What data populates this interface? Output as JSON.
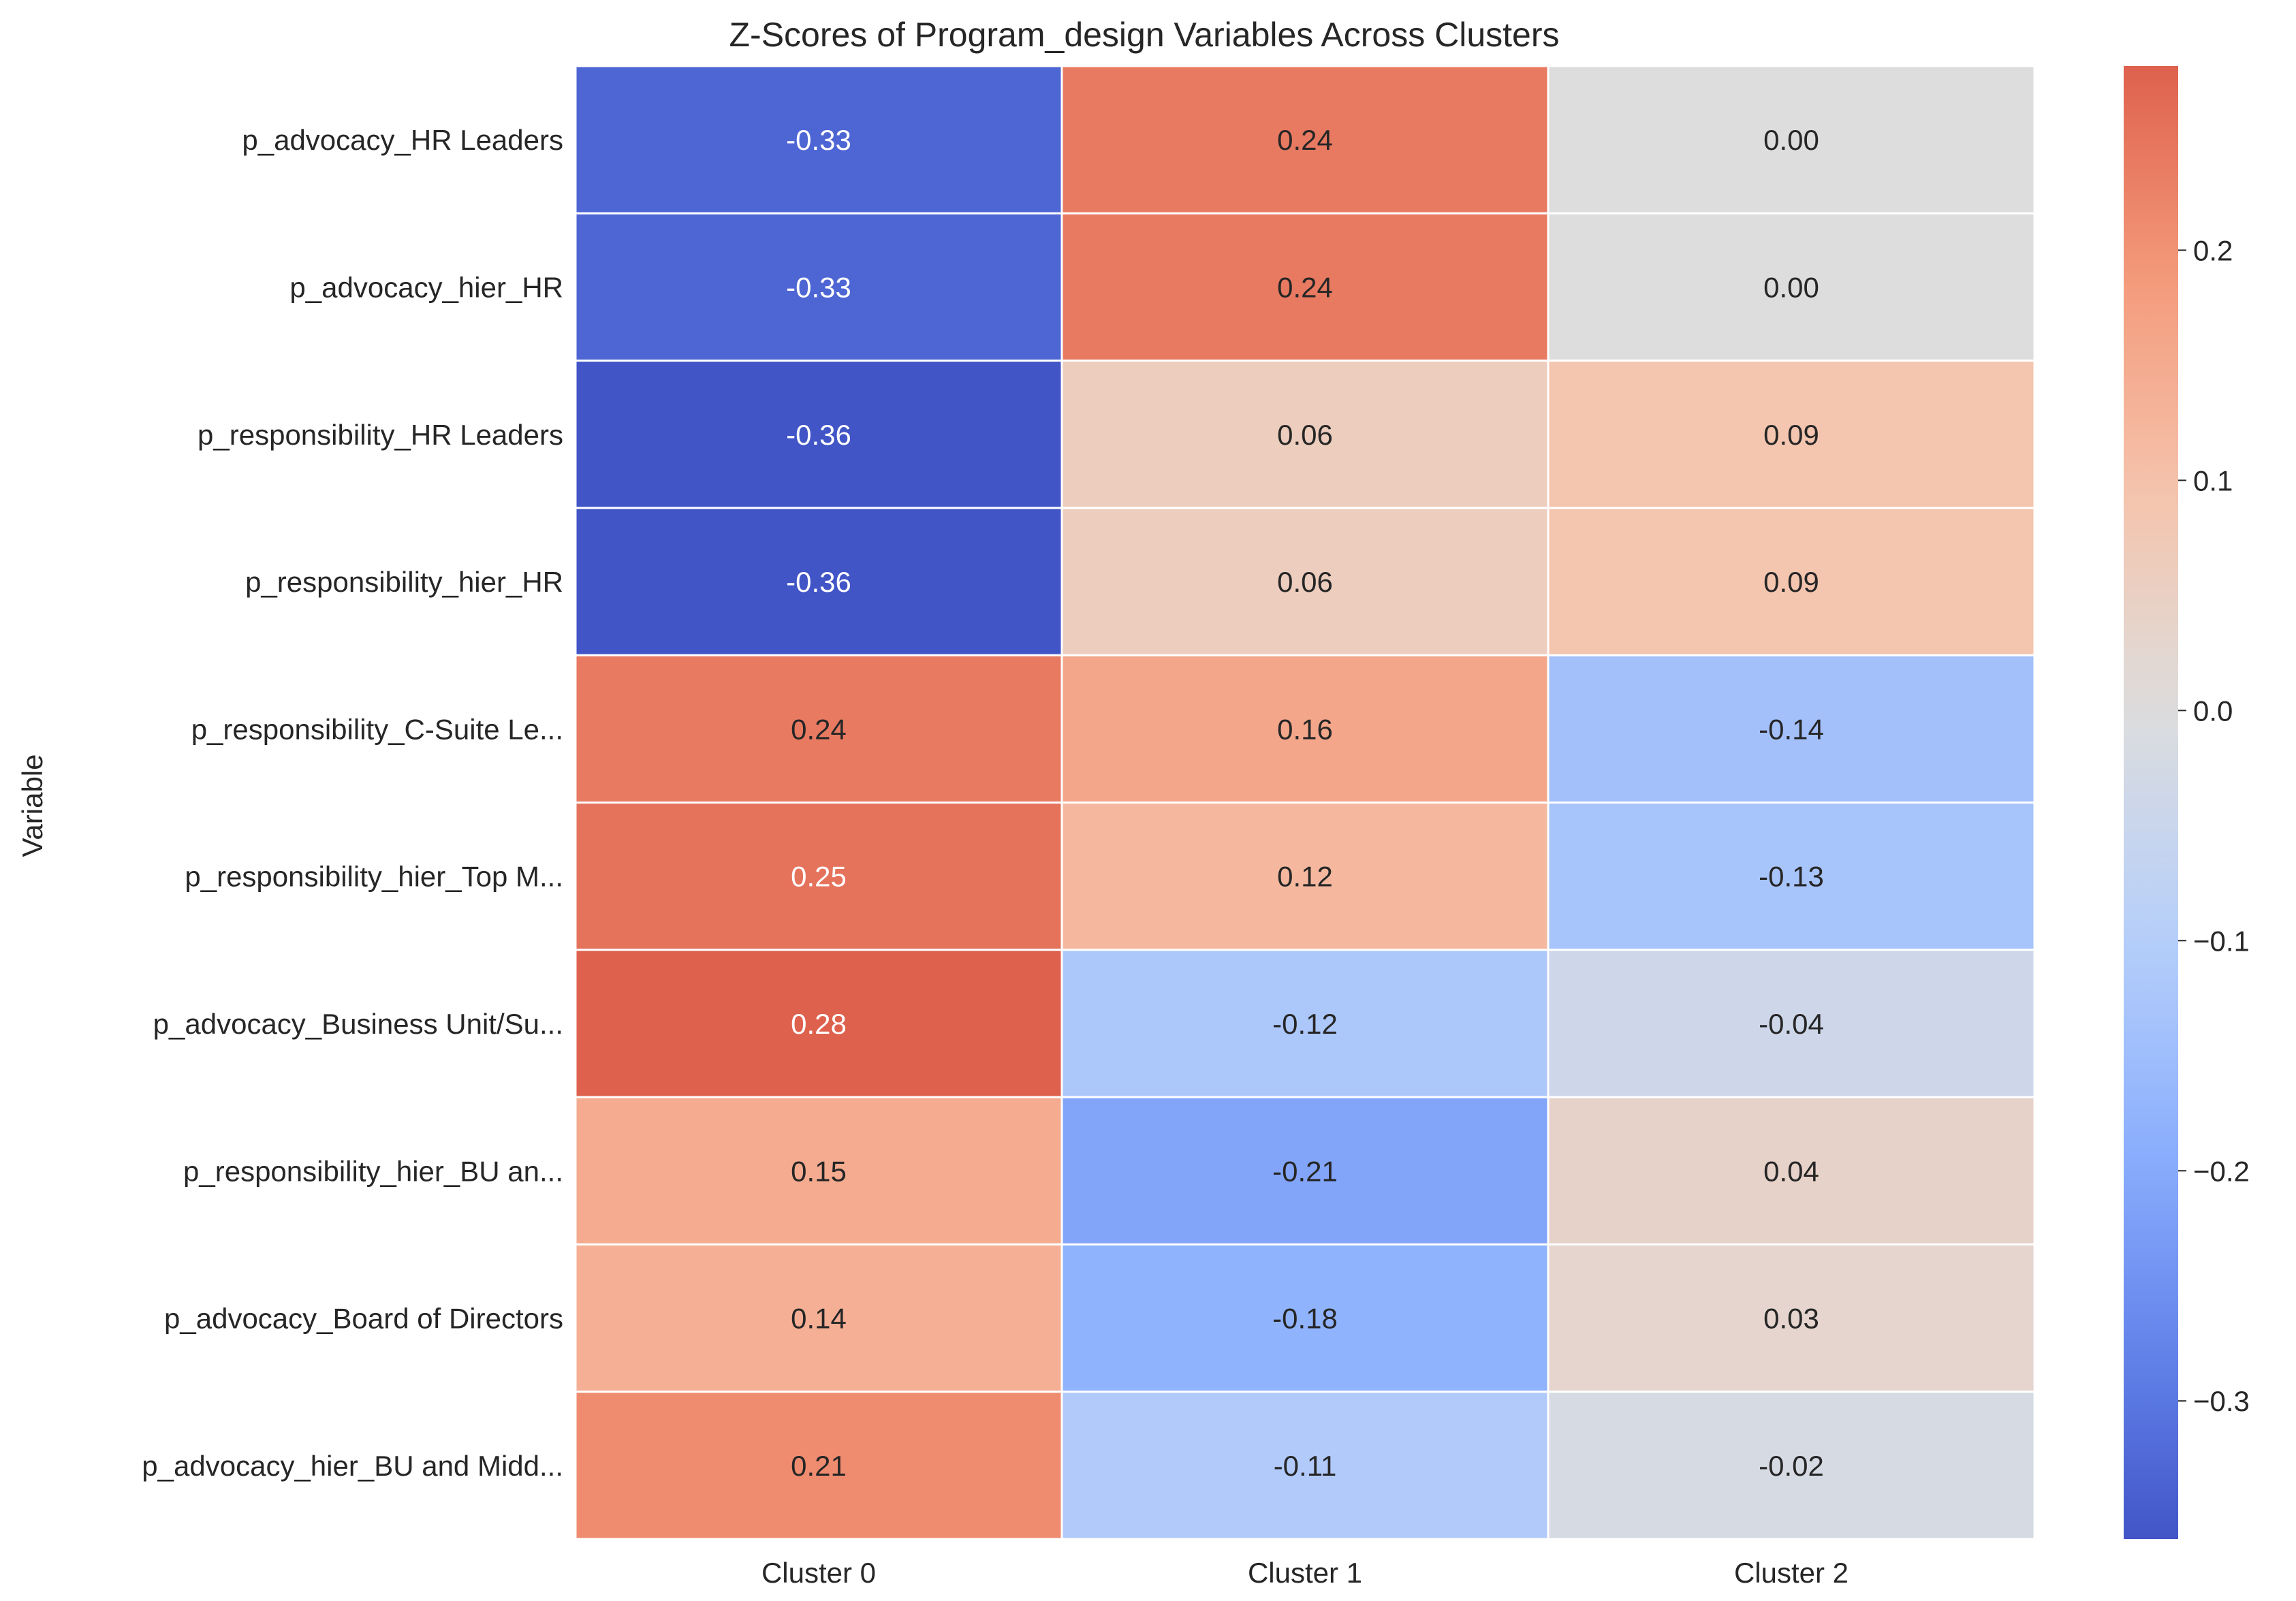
{
  "chart_data": {
    "type": "heatmap",
    "title": "Z-Scores of Program_design Variables Across Clusters",
    "xlabel": "",
    "ylabel": "Variable",
    "columns": [
      "Cluster 0",
      "Cluster 1",
      "Cluster 2"
    ],
    "rows": [
      "p_advocacy_HR Leaders",
      "p_advocacy_hier_HR",
      "p_responsibility_HR Leaders",
      "p_responsibility_hier_HR",
      "p_responsibility_C-Suite Le...",
      "p_responsibility_hier_Top M...",
      "p_advocacy_Business Unit/Su...",
      "p_responsibility_hier_BU an...",
      "p_advocacy_Board of Directors",
      "p_advocacy_hier_BU and Midd..."
    ],
    "values": [
      [
        -0.33,
        0.24,
        0.0
      ],
      [
        -0.33,
        0.24,
        0.0
      ],
      [
        -0.36,
        0.06,
        0.09
      ],
      [
        -0.36,
        0.06,
        0.09
      ],
      [
        0.24,
        0.16,
        -0.14
      ],
      [
        0.25,
        0.12,
        -0.13
      ],
      [
        0.28,
        -0.12,
        -0.04
      ],
      [
        0.15,
        -0.21,
        0.04
      ],
      [
        0.14,
        -0.18,
        0.03
      ],
      [
        0.21,
        -0.11,
        -0.02
      ]
    ],
    "value_format": "2 decimals",
    "colormap": "coolwarm",
    "color_range": [
      -0.36,
      0.28
    ],
    "colorbar": {
      "ticks": [
        0.2,
        0.1,
        0.0,
        -0.1,
        -0.2,
        -0.3
      ],
      "tick_labels": [
        "0.2",
        "0.1",
        "0.0",
        "−0.1",
        "−0.2",
        "−0.3"
      ],
      "position": "right"
    },
    "cell_border_color": "#ffffff",
    "grid": false
  }
}
